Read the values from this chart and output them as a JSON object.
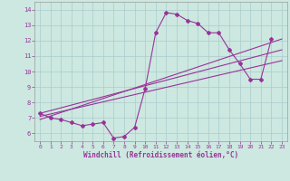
{
  "xlabel": "Windchill (Refroidissement éolien,°C)",
  "bg_color": "#cce8e0",
  "line_color": "#993399",
  "grid_color": "#aacccc",
  "xlim": [
    -0.5,
    23.5
  ],
  "ylim": [
    5.5,
    14.5
  ],
  "xticks": [
    0,
    1,
    2,
    3,
    4,
    5,
    6,
    7,
    8,
    9,
    10,
    11,
    12,
    13,
    14,
    15,
    16,
    17,
    18,
    19,
    20,
    21,
    22,
    23
  ],
  "yticks": [
    6,
    7,
    8,
    9,
    10,
    11,
    12,
    13,
    14
  ],
  "series1_x": [
    0,
    1,
    2,
    3,
    4,
    5,
    6,
    7,
    8,
    9,
    10,
    11,
    12,
    13,
    14,
    15,
    16,
    17,
    18,
    19,
    20,
    21,
    22
  ],
  "series1_y": [
    7.3,
    7.0,
    6.9,
    6.7,
    6.5,
    6.6,
    6.7,
    5.7,
    5.8,
    6.4,
    8.9,
    12.5,
    13.8,
    13.7,
    13.3,
    13.1,
    12.5,
    12.5,
    11.4,
    10.5,
    9.5,
    9.5,
    12.1
  ],
  "line1_x": [
    0,
    23
  ],
  "line1_y": [
    7.3,
    11.4
  ],
  "line2_x": [
    0,
    23
  ],
  "line2_y": [
    7.1,
    10.7
  ],
  "line3_x": [
    0,
    23
  ],
  "line3_y": [
    6.9,
    12.1
  ]
}
